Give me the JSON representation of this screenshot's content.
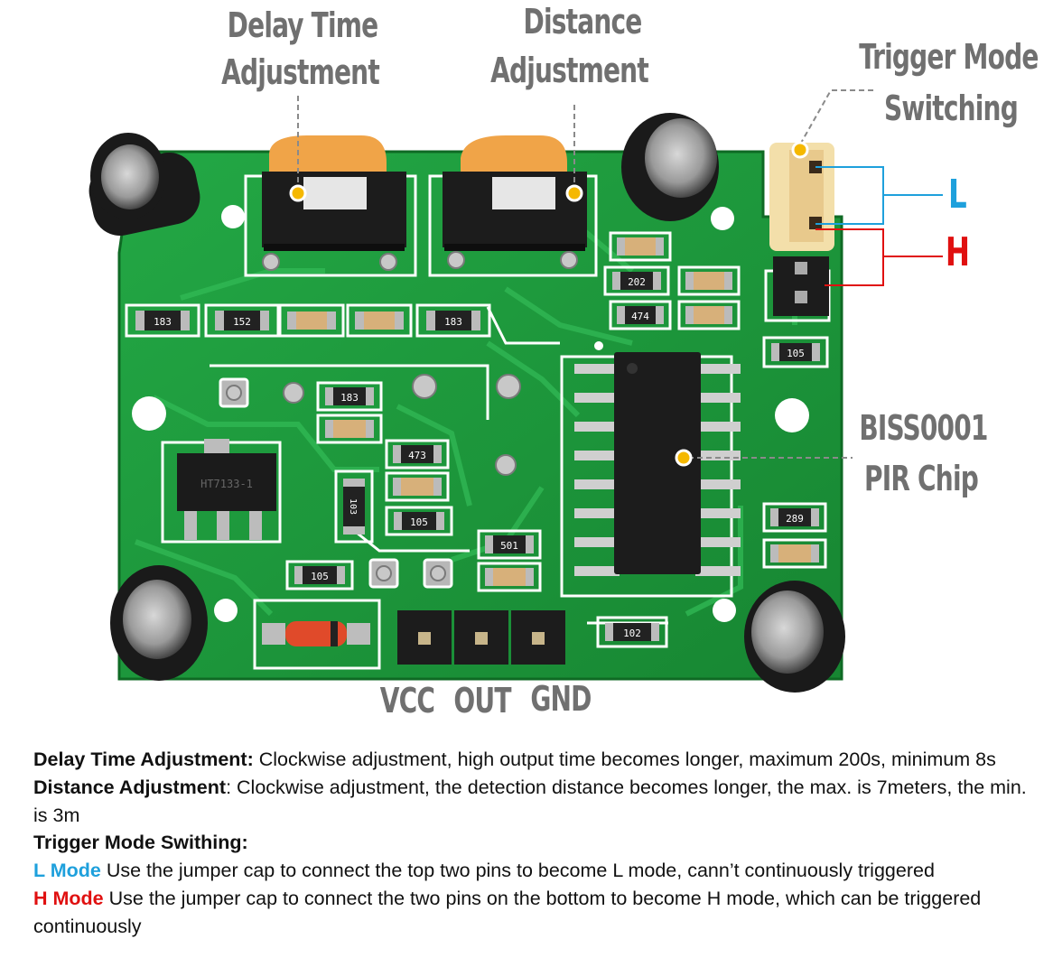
{
  "labels": {
    "delay_line1": "Delay Time",
    "delay_line2": "Adjustment",
    "distance_line1": "Distance",
    "distance_line2": "Adjustment",
    "trigger_line1": "Trigger Mode",
    "trigger_line2": "Switching",
    "mode_l": "L",
    "mode_h": "H",
    "chip_line1": "BISS0001",
    "chip_line2": "PIR Chip",
    "pin_vcc": "VCC",
    "pin_out": "OUT",
    "pin_gnd": "GND"
  },
  "board_text": {
    "r1": "183",
    "r2": "152",
    "r3": "183",
    "r4": "183",
    "r5": "202",
    "r6": "474",
    "r7": "105",
    "r8": "473",
    "r9": "105",
    "r10": "105",
    "r11": "501",
    "r12": "102",
    "r13": "289",
    "r14": "103",
    "reg": "HT7133-1"
  },
  "description": {
    "delay_title": "Delay Time Adjustment:",
    "delay_text": " Clockwise adjustment, high output time becomes longer, maximum 200s, minimum 8s",
    "distance_title": "Distance Adjustment",
    "distance_text": ": Clockwise adjustment, the detection distance becomes longer, the max. is 7meters, the min. is 3m",
    "trigger_title": "Trigger Mode Swithing:",
    "l_title": "L Mode",
    "l_text": " Use the jumper cap to connect the top two pins to become L mode, cann’t continuously triggered",
    "h_title": "H Mode",
    "h_text": " Use the jumper cap to connect the two pins on the bottom to become H mode, which can be triggered continuously"
  },
  "colors": {
    "board": "#1f9a3c",
    "label_gray": "#707070",
    "mode_l": "#1ea0dc",
    "mode_h": "#e01010",
    "marker": "#f5b800"
  }
}
